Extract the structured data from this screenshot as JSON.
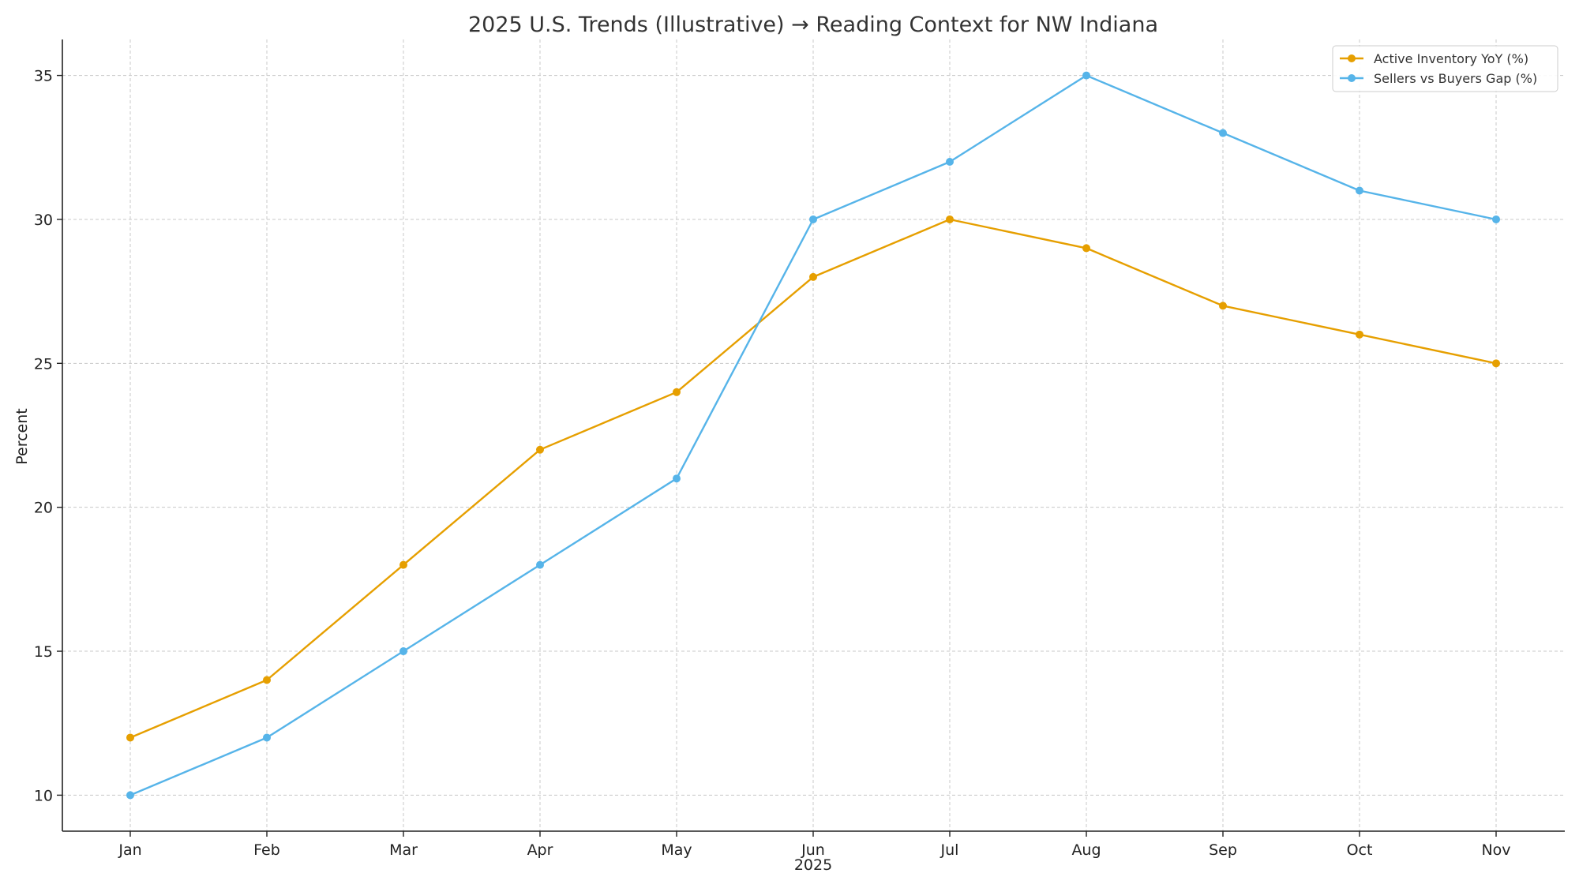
{
  "chart_data": {
    "type": "line",
    "title": "2025 U.S. Trends (Illustrative) → Reading Context for NW Indiana",
    "xlabel": "2025",
    "ylabel": "Percent",
    "categories": [
      "Jan",
      "Feb",
      "Mar",
      "Apr",
      "May",
      "Jun",
      "Jul",
      "Aug",
      "Sep",
      "Oct",
      "Nov"
    ],
    "yticks": [
      "10",
      "15",
      "20",
      "25",
      "30",
      "35"
    ],
    "ylim": [
      8.75,
      36.25
    ],
    "grid": true,
    "legend_position": "top-right",
    "series": [
      {
        "name": "Active Inventory YoY (%)",
        "color": "#E69F00",
        "values": [
          12,
          14,
          18,
          22,
          24,
          28,
          30,
          29,
          27,
          26,
          25
        ]
      },
      {
        "name": "Sellers vs Buyers Gap (%)",
        "color": "#56B4E9",
        "values": [
          10,
          12,
          15,
          18,
          21,
          30,
          32,
          35,
          33,
          31,
          30
        ]
      }
    ]
  }
}
